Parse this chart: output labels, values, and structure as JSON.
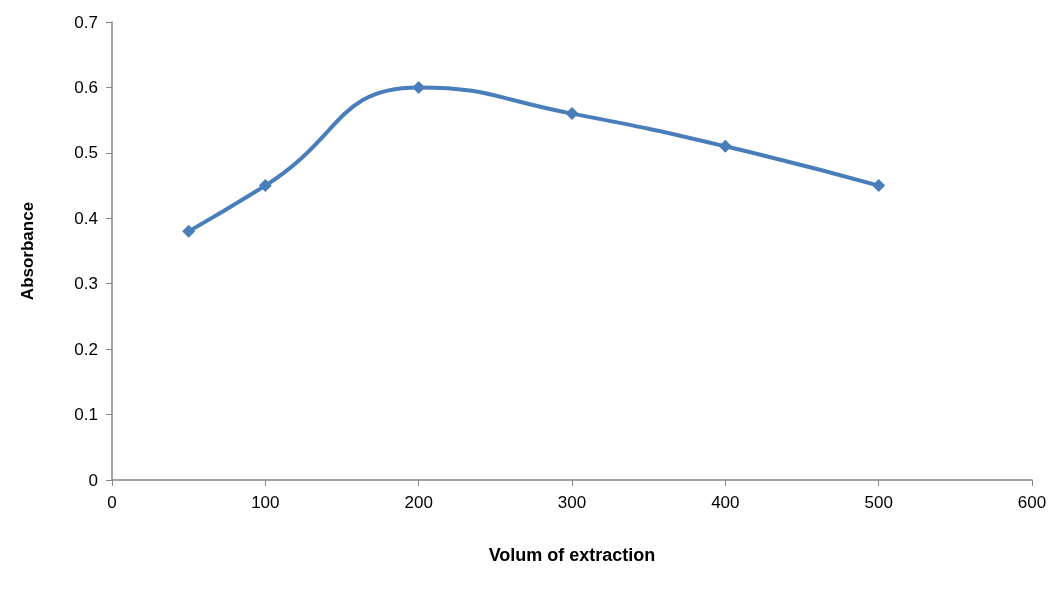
{
  "chart_data": {
    "type": "line",
    "xlabel": "Volum of extraction",
    "ylabel": "Absorbance",
    "x": [
      50,
      100,
      200,
      300,
      400,
      500
    ],
    "series": [
      {
        "color": "#4a7ebb",
        "values": [
          0.38,
          0.45,
          0.6,
          0.56,
          0.51,
          0.45
        ]
      }
    ],
    "xlim": [
      0,
      600
    ],
    "xticks": [
      0,
      100,
      200,
      300,
      400,
      500,
      600
    ],
    "ylim": [
      0,
      0.7
    ],
    "yticks": [
      0,
      0.1,
      0.2,
      0.3,
      0.4,
      0.5,
      0.6,
      0.7
    ],
    "marker": "diamond",
    "line_style": "solid"
  }
}
